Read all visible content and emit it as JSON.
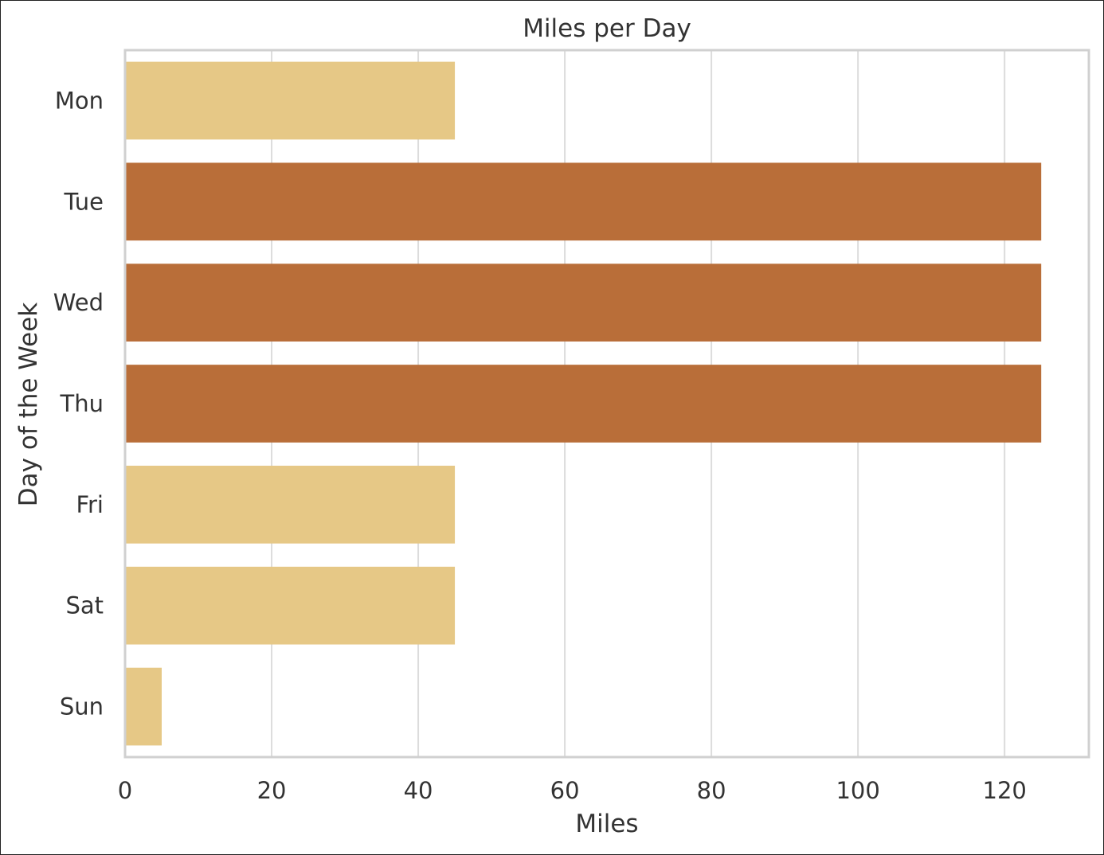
{
  "chart_data": {
    "type": "bar",
    "orientation": "horizontal",
    "title": "Miles per Day",
    "xlabel": "Miles",
    "ylabel": "Day of the Week",
    "categories": [
      "Mon",
      "Tue",
      "Wed",
      "Thu",
      "Fri",
      "Sat",
      "Sun"
    ],
    "values": [
      45,
      125,
      125,
      125,
      45,
      45,
      5
    ],
    "bar_colors": [
      "#e6c886",
      "#b96e39",
      "#b96e39",
      "#b96e39",
      "#e6c886",
      "#e6c886",
      "#e6c886"
    ],
    "xticks": [
      0,
      20,
      40,
      60,
      80,
      100,
      120
    ],
    "xlim": [
      0,
      131.5
    ],
    "grid": "vertical"
  }
}
